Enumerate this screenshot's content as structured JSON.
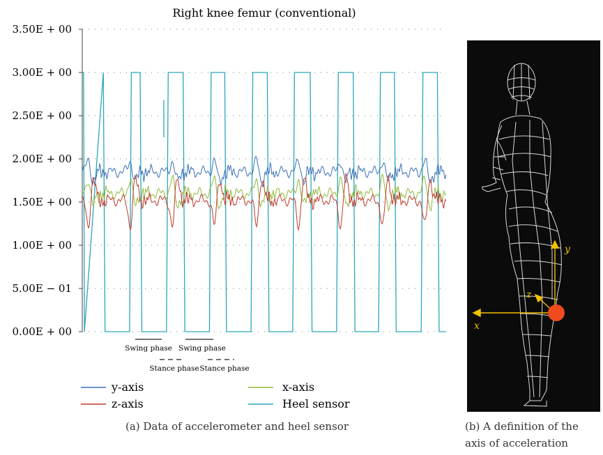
{
  "figure_a": {
    "caption": "(a)  Data of accelerometer and heel sensor",
    "phase_labels": [
      "Swing phase",
      "Swing phase",
      "Stance phase",
      "Stance phase"
    ]
  },
  "figure_b": {
    "caption_line1": "(b)  A definition of the",
    "caption_line2": "axis of acceleration",
    "axis_labels": [
      "y",
      "z",
      "x"
    ],
    "sensor_color": "#f04a1e",
    "axis_color": "#f2c200"
  },
  "chart_data": {
    "type": "line",
    "title": "Right knee femur (conventional)",
    "ylim": [
      0,
      3.5
    ],
    "yticks": [
      {
        "value": 3.5,
        "label": "3.50E + 00"
      },
      {
        "value": 3.0,
        "label": "3.00E + 00"
      },
      {
        "value": 2.5,
        "label": "2.50E + 00"
      },
      {
        "value": 2.0,
        "label": "2.00E + 00"
      },
      {
        "value": 1.5,
        "label": "1.50E + 00"
      },
      {
        "value": 1.0,
        "label": "1.00E + 00"
      },
      {
        "value": 0.5,
        "label": "5.00E − 01"
      },
      {
        "value": 0.0,
        "label": "0.00E + 00"
      }
    ],
    "grid": "dotted horizontal",
    "legend_position": "bottom",
    "series": [
      {
        "name": "y-axis",
        "color": "#3a6fb5",
        "baseline": 1.85,
        "amplitude": 0.15
      },
      {
        "name": "z-axis",
        "color": "#c0392b",
        "baseline": 1.52,
        "amplitude": 0.35
      },
      {
        "name": "x-axis",
        "color": "#8fb83a",
        "baseline": 1.6,
        "amplitude": 0.25
      },
      {
        "name": "Heel sensor",
        "color": "#2aa6b8",
        "low": 0.0,
        "high": 3.0,
        "high_intervals": [
          [
            0.8,
            4.8
          ],
          [
            10.8,
            13.2
          ],
          [
            19.2,
            23.0
          ],
          [
            29.0,
            32.5
          ],
          [
            38.5,
            42.2
          ],
          [
            48.0,
            52.0
          ],
          [
            58.0,
            61.8
          ],
          [
            67.6,
            71.2
          ],
          [
            77.3,
            81.0
          ]
        ]
      }
    ]
  }
}
